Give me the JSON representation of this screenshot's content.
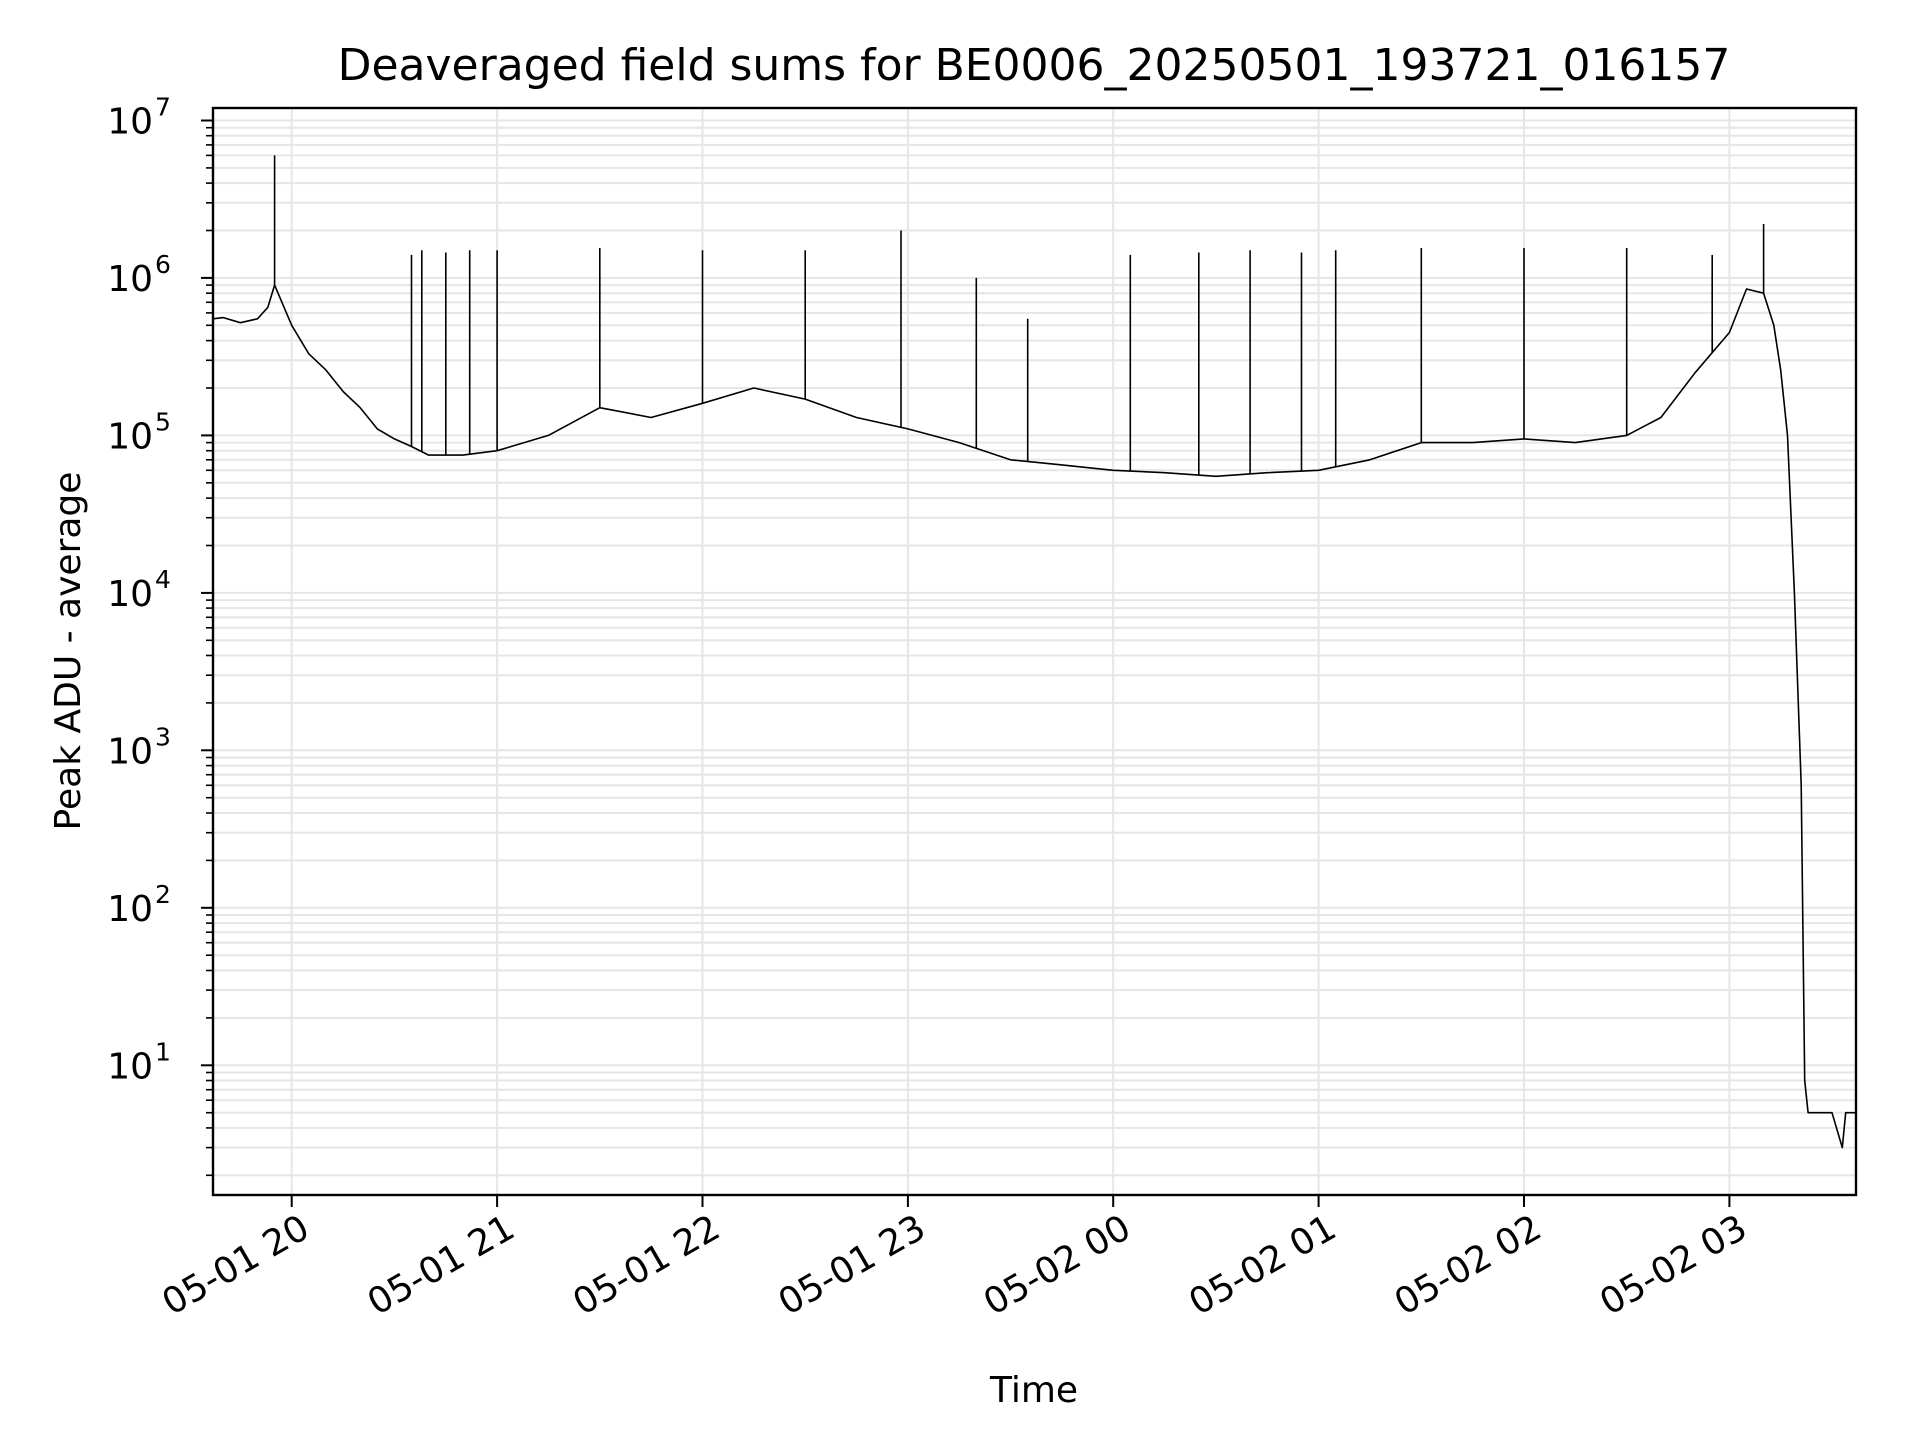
{
  "chart_data": {
    "type": "line",
    "title": "Deaveraged field sums for BE0006_20250501_193721_016157",
    "xlabel": "Time",
    "ylabel": "Peak ADU - average",
    "yscale": "log",
    "ylim": [
      1.5,
      12000000
    ],
    "xlim": [
      "2025-05-01 19:37",
      "2025-05-02 03:37"
    ],
    "grid": "major and minor",
    "x_ticks": [
      {
        "value": "2025-05-01 20:00",
        "label": "05-01 20"
      },
      {
        "value": "2025-05-01 21:00",
        "label": "05-01 21"
      },
      {
        "value": "2025-05-01 22:00",
        "label": "05-01 22"
      },
      {
        "value": "2025-05-01 23:00",
        "label": "05-01 23"
      },
      {
        "value": "2025-05-02 00:00",
        "label": "05-02 00"
      },
      {
        "value": "2025-05-02 01:00",
        "label": "05-02 01"
      },
      {
        "value": "2025-05-02 02:00",
        "label": "05-02 02"
      },
      {
        "value": "2025-05-02 03:00",
        "label": "05-02 03"
      }
    ],
    "y_ticks": [
      {
        "value": 10,
        "base": "10",
        "exp": "1"
      },
      {
        "value": 100,
        "base": "10",
        "exp": "2"
      },
      {
        "value": 1000,
        "base": "10",
        "exp": "3"
      },
      {
        "value": 10000,
        "base": "10",
        "exp": "4"
      },
      {
        "value": 100000,
        "base": "10",
        "exp": "5"
      },
      {
        "value": 1000000,
        "base": "10",
        "exp": "6"
      },
      {
        "value": 10000000,
        "base": "10",
        "exp": "7"
      }
    ],
    "series_color": "#000000",
    "series": [
      {
        "x": [
          "2025-05-01 19:37",
          "2025-05-01 19:40",
          "2025-05-01 19:45",
          "2025-05-01 19:50",
          "2025-05-01 19:53",
          "2025-05-01 19:55",
          "2025-05-01 20:00",
          "2025-05-01 20:05",
          "2025-05-01 20:10",
          "2025-05-01 20:15",
          "2025-05-01 20:20",
          "2025-05-01 20:25",
          "2025-05-01 20:30",
          "2025-05-01 20:35",
          "2025-05-01 20:40",
          "2025-05-01 20:50",
          "2025-05-01 21:00",
          "2025-05-01 21:15",
          "2025-05-01 21:30",
          "2025-05-01 21:45",
          "2025-05-01 22:00",
          "2025-05-01 22:15",
          "2025-05-01 22:30",
          "2025-05-01 22:45",
          "2025-05-01 23:00",
          "2025-05-01 23:15",
          "2025-05-01 23:30",
          "2025-05-01 23:45",
          "2025-05-02 00:00",
          "2025-05-02 00:15",
          "2025-05-02 00:30",
          "2025-05-02 00:45",
          "2025-05-02 01:00",
          "2025-05-02 01:15",
          "2025-05-02 01:30",
          "2025-05-02 01:45",
          "2025-05-02 02:00",
          "2025-05-02 02:15",
          "2025-05-02 02:30",
          "2025-05-02 02:40",
          "2025-05-02 02:50",
          "2025-05-02 03:00",
          "2025-05-02 03:05",
          "2025-05-02 03:10",
          "2025-05-02 03:13",
          "2025-05-02 03:15",
          "2025-05-02 03:17",
          "2025-05-02 03:19",
          "2025-05-02 03:21",
          "2025-05-02 03:22",
          "2025-05-02 03:23",
          "2025-05-02 03:24",
          "2025-05-02 03:30",
          "2025-05-02 03:33",
          "2025-05-02 03:34",
          "2025-05-02 03:37"
        ],
        "y": [
          550000,
          560000,
          520000,
          550000,
          650000,
          900000,
          500000,
          330000,
          260000,
          190000,
          150000,
          110000,
          95000,
          85000,
          75000,
          75000,
          80000,
          100000,
          150000,
          130000,
          160000,
          200000,
          170000,
          130000,
          110000,
          90000,
          70000,
          65000,
          60000,
          58000,
          55000,
          58000,
          60000,
          70000,
          90000,
          90000,
          95000,
          90000,
          100000,
          130000,
          250000,
          450000,
          850000,
          800000,
          500000,
          260000,
          100000,
          10000,
          600,
          8,
          5,
          5,
          5,
          3,
          5,
          5
        ]
      }
    ],
    "spikes": [
      {
        "x": "2025-05-01 19:55",
        "y": 6000000
      },
      {
        "x": "2025-05-01 20:35",
        "y": 1400000
      },
      {
        "x": "2025-05-01 20:38",
        "y": 1500000
      },
      {
        "x": "2025-05-01 20:45",
        "y": 1450000
      },
      {
        "x": "2025-05-01 20:52",
        "y": 1500000
      },
      {
        "x": "2025-05-01 21:00",
        "y": 1500000
      },
      {
        "x": "2025-05-01 21:30",
        "y": 1550000
      },
      {
        "x": "2025-05-01 22:00",
        "y": 1500000
      },
      {
        "x": "2025-05-01 22:30",
        "y": 1500000
      },
      {
        "x": "2025-05-01 22:58",
        "y": 2000000
      },
      {
        "x": "2025-05-01 23:20",
        "y": 1000000
      },
      {
        "x": "2025-05-01 23:35",
        "y": 550000
      },
      {
        "x": "2025-05-02 00:05",
        "y": 1400000
      },
      {
        "x": "2025-05-02 00:25",
        "y": 1450000
      },
      {
        "x": "2025-05-02 00:40",
        "y": 1500000
      },
      {
        "x": "2025-05-02 00:55",
        "y": 1450000
      },
      {
        "x": "2025-05-02 01:05",
        "y": 1500000
      },
      {
        "x": "2025-05-02 01:30",
        "y": 1550000
      },
      {
        "x": "2025-05-02 02:00",
        "y": 1550000
      },
      {
        "x": "2025-05-02 02:30",
        "y": 1550000
      },
      {
        "x": "2025-05-02 02:55",
        "y": 1400000
      },
      {
        "x": "2025-05-02 03:10",
        "y": 2200000
      }
    ]
  }
}
